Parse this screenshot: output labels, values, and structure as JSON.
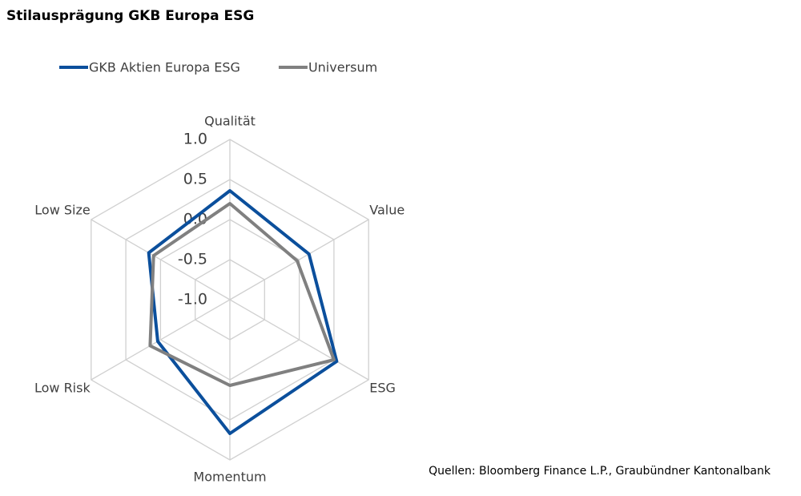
{
  "chart_data": {
    "type": "radar",
    "title": "Stilausprägung GKB Europa ESG",
    "categories": [
      "Qualität",
      "Value",
      "ESG",
      "Momentum",
      "Low Risk",
      "Low Size"
    ],
    "series": [
      {
        "name": "GKB Aktien Europa ESG",
        "color": "#0b4f9c",
        "values": [
          0.36,
          0.14,
          0.54,
          0.67,
          0.04,
          0.17
        ]
      },
      {
        "name": "Universum",
        "color": "#808080",
        "values": [
          0.2,
          -0.03,
          0.5,
          0.07,
          0.15,
          0.1
        ]
      }
    ],
    "ylim": [
      -1.0,
      1.0
    ],
    "yticks": [
      {
        "value": -1.0,
        "label": "-1.0"
      },
      {
        "value": -0.5,
        "label": "-0.5"
      },
      {
        "value": 0.0,
        "label": "0.0"
      },
      {
        "value": 0.5,
        "label": "0.5"
      },
      {
        "value": 1.0,
        "label": "1.0"
      }
    ],
    "legend": "top",
    "source": "Quellen: Bloomberg Finance L.P., Graubündner Kantonalbank"
  }
}
